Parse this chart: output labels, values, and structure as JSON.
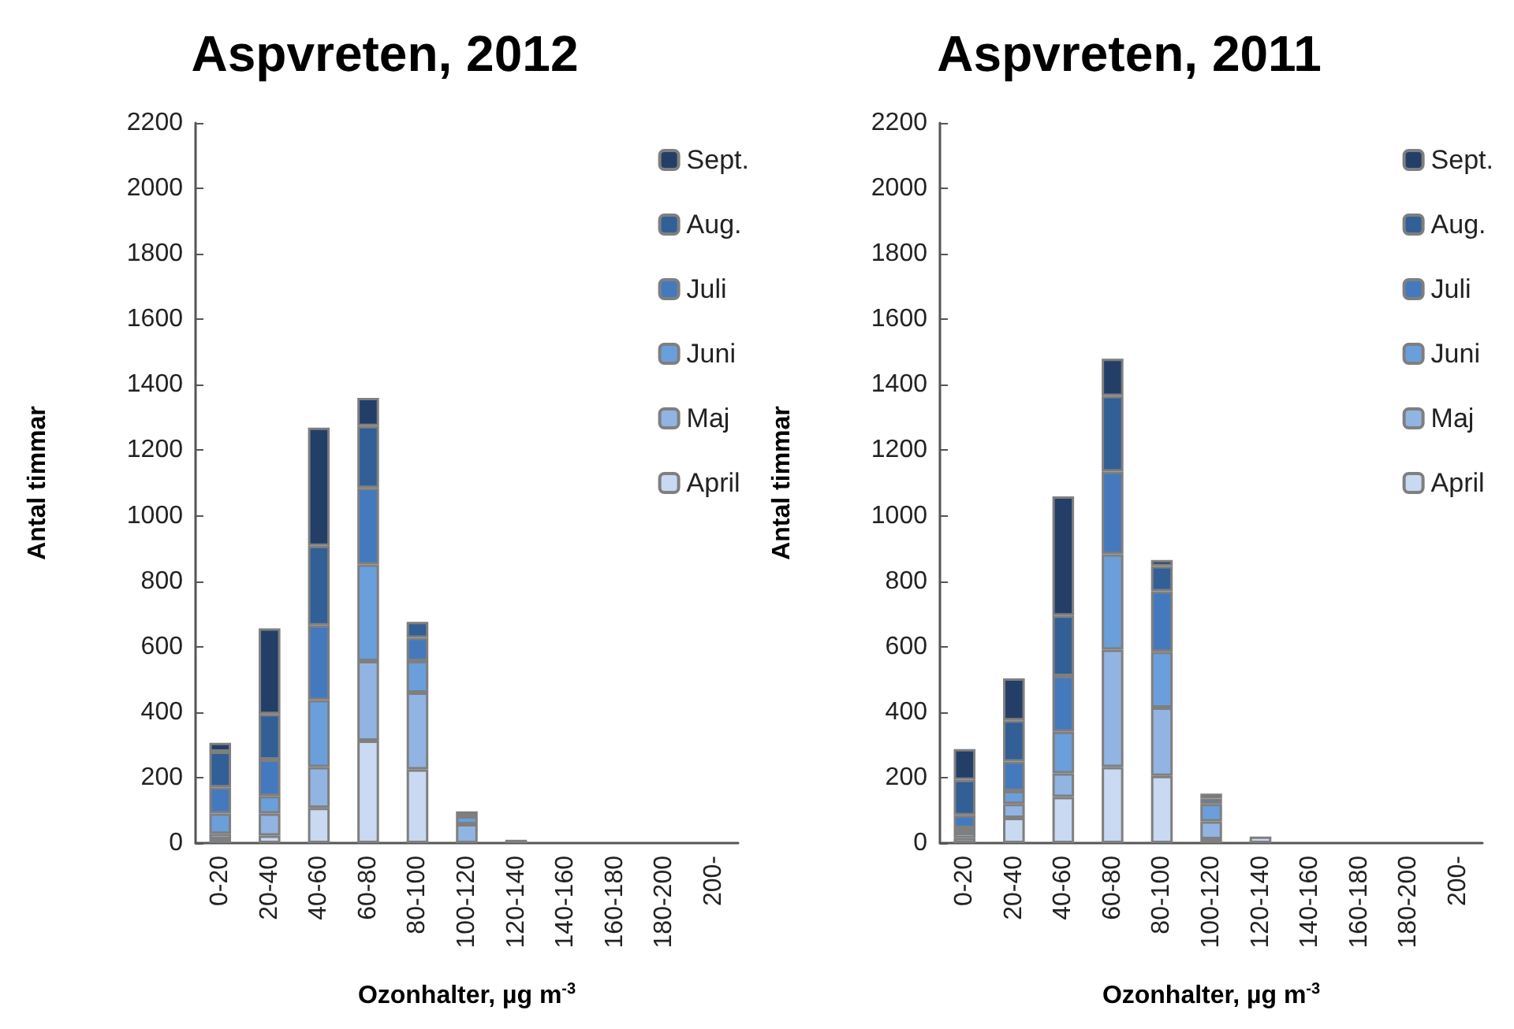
{
  "chart_data": [
    {
      "type": "bar",
      "title": "Aspvreten, 2012",
      "xlabel": "Ozonhalter, µg m$^{-3}$",
      "ylabel": "Antal timmar",
      "categories": [
        "0-20",
        "20-40",
        "40-60",
        "60-80",
        "80-100",
        "100-120",
        "120-140",
        "140-160",
        "160-180",
        "180-200",
        "200-"
      ],
      "stacked": true,
      "ylim": [
        0,
        2200
      ],
      "yticks": [
        0,
        200,
        400,
        600,
        800,
        1000,
        1200,
        1400,
        1600,
        1800,
        2000,
        2200
      ],
      "legend": "top right",
      "series": [
        {
          "name": "April",
          "color": "#c8d9f1",
          "values": [
            12,
            23,
            108,
            313,
            225,
            null,
            10,
            null,
            null,
            null,
            null
          ]
        },
        {
          "name": "Maj",
          "color": "#92b4e2",
          "values": [
            16,
            67,
            124,
            243,
            235,
            58,
            null,
            null,
            null,
            null,
            null
          ]
        },
        {
          "name": "Juni",
          "color": "#6b9fdb",
          "values": [
            62,
            54,
            205,
            295,
            96,
            24,
            null,
            null,
            null,
            null,
            null
          ]
        },
        {
          "name": "Juli",
          "color": "#4579bd",
          "values": [
            80,
            111,
            228,
            234,
            71,
            15,
            null,
            null,
            null,
            null,
            null
          ]
        },
        {
          "name": "Aug.",
          "color": "#325f96",
          "values": [
            109,
            139,
            243,
            189,
            49,
            null,
            null,
            null,
            null,
            null,
            null
          ]
        },
        {
          "name": "Sept.",
          "color": "#243f67",
          "values": [
            27,
            262,
            361,
            86,
            null,
            null,
            null,
            null,
            null,
            null,
            null
          ]
        }
      ]
    },
    {
      "type": "bar",
      "title": "Aspvreten, 2011",
      "xlabel": "Ozonhalter, µg m$^{-3}$",
      "ylabel": "Antal timmar",
      "categories": [
        "0-20",
        "20-40",
        "40-60",
        "60-80",
        "80-100",
        "100-120",
        "120-140",
        "140-160",
        "160-180",
        "180-200",
        "200-"
      ],
      "stacked": true,
      "ylim": [
        0,
        2200
      ],
      "yticks": [
        0,
        200,
        400,
        600,
        800,
        1000,
        1200,
        1400,
        1600,
        1800,
        2000,
        2200
      ],
      "legend": "top right",
      "series": [
        {
          "name": "April",
          "color": "#c8d9f1",
          "values": [
            15,
            77,
            141,
            232,
            205,
            12,
            20,
            null,
            null,
            null,
            null
          ]
        },
        {
          "name": "Maj",
          "color": "#92b4e2",
          "values": [
            16,
            43,
            72,
            359,
            209,
            54,
            null,
            null,
            null,
            null,
            null
          ]
        },
        {
          "name": "Juni",
          "color": "#6b9fdb",
          "values": [
            15,
            39,
            127,
            291,
            170,
            54,
            null,
            null,
            null,
            null,
            null
          ]
        },
        {
          "name": "Juli",
          "color": "#4579bd",
          "values": [
            39,
            90,
            170,
            253,
            185,
            16,
            null,
            null,
            null,
            null,
            null
          ]
        },
        {
          "name": "Aug.",
          "color": "#325f96",
          "values": [
            108,
            126,
            185,
            231,
            77,
            15,
            null,
            null,
            null,
            null,
            null
          ]
        },
        {
          "name": "Sept.",
          "color": "#243f67",
          "values": [
            94,
            128,
            364,
            114,
            19,
            null,
            null,
            null,
            null,
            null,
            null
          ]
        }
      ]
    }
  ]
}
